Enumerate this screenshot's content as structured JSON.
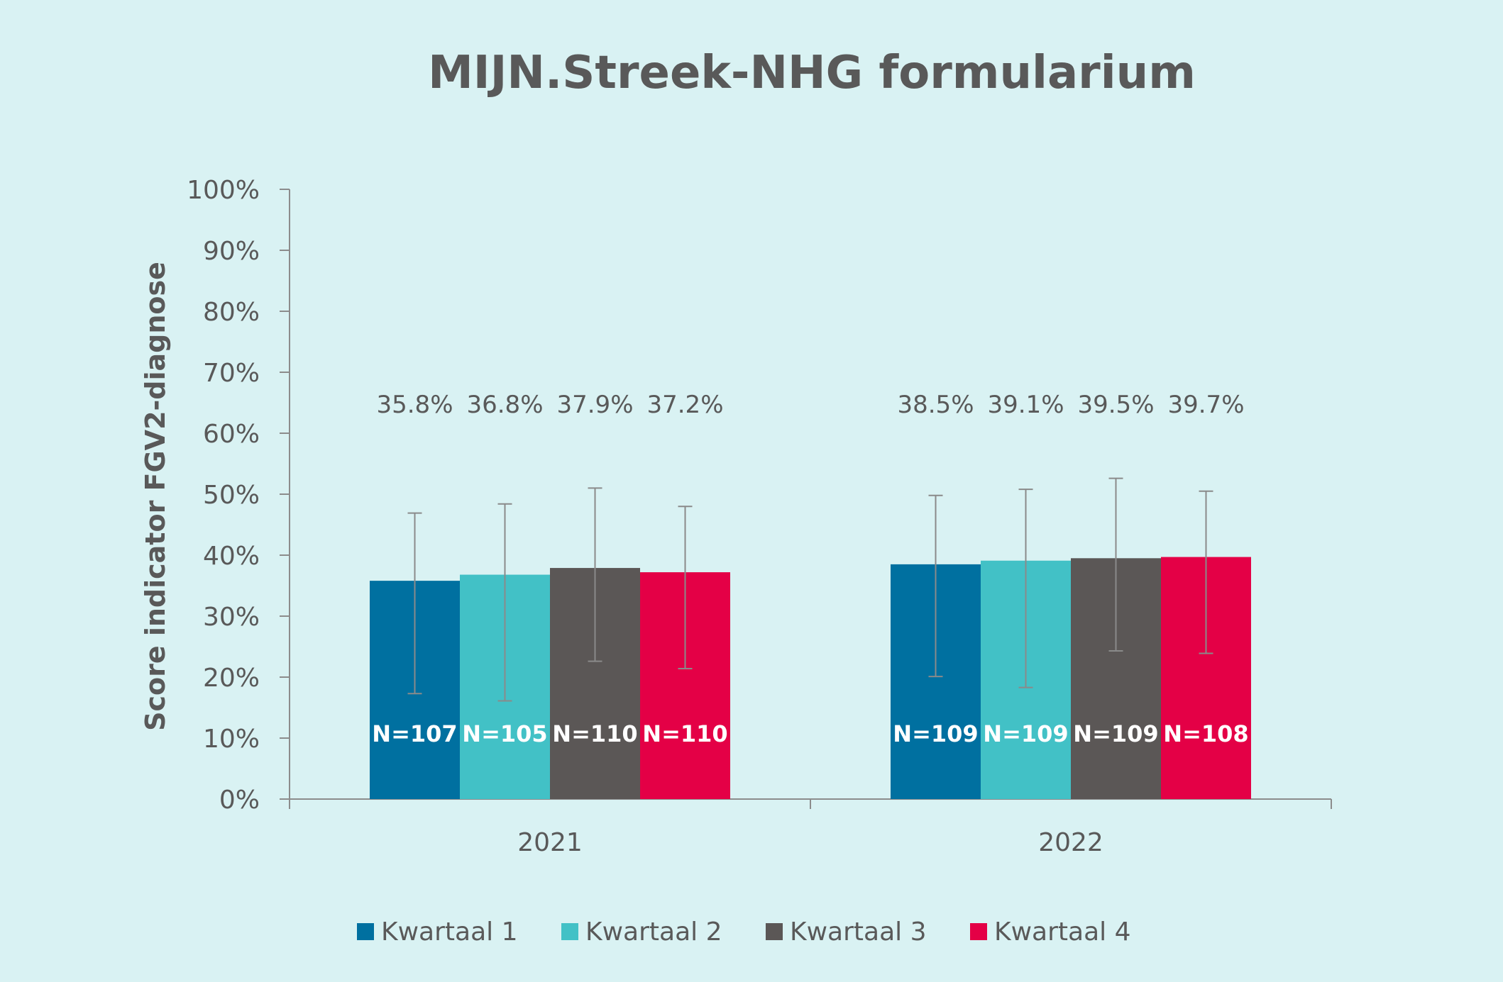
{
  "chart_data": {
    "type": "bar",
    "title": "MIJN.Streek-NHG formularium",
    "ylabel": "Score indicator FGV2-diagnose",
    "xlabel": "",
    "ylim": [
      0,
      100
    ],
    "yticks": [
      "0%",
      "10%",
      "20%",
      "30%",
      "40%",
      "50%",
      "60%",
      "70%",
      "80%",
      "90%",
      "100%"
    ],
    "categories": [
      "2021",
      "2022"
    ],
    "legend_position": "bottom",
    "grid": false,
    "series": [
      {
        "name": "Kwartaal 1",
        "color": "#0070a0",
        "values": [
          35.8,
          38.5
        ],
        "value_labels": [
          "35.8%",
          "38.5%"
        ],
        "n_labels": [
          "N=107",
          "N=109"
        ],
        "error_low": [
          17.3,
          20.1
        ],
        "error_high": [
          46.9,
          49.8
        ]
      },
      {
        "name": "Kwartaal 2",
        "color": "#42c1c6",
        "values": [
          36.8,
          39.1
        ],
        "value_labels": [
          "36.8%",
          "39.1%"
        ],
        "n_labels": [
          "N=105",
          "N=109"
        ],
        "error_low": [
          16.1,
          18.3
        ],
        "error_high": [
          48.4,
          50.8
        ]
      },
      {
        "name": "Kwartaal 3",
        "color": "#5b5756",
        "values": [
          37.9,
          39.5
        ],
        "value_labels": [
          "37.9%",
          "39.5%"
        ],
        "n_labels": [
          "N=110",
          "N=109"
        ],
        "error_low": [
          22.6,
          24.3
        ],
        "error_high": [
          51.0,
          52.6
        ]
      },
      {
        "name": "Kwartaal 4",
        "color": "#e40046",
        "values": [
          37.2,
          39.7
        ],
        "value_labels": [
          "37.2%",
          "39.7%"
        ],
        "n_labels": [
          "N=110",
          "N=108"
        ],
        "error_low": [
          21.4,
          23.9
        ],
        "error_high": [
          48.0,
          50.5
        ]
      }
    ]
  }
}
